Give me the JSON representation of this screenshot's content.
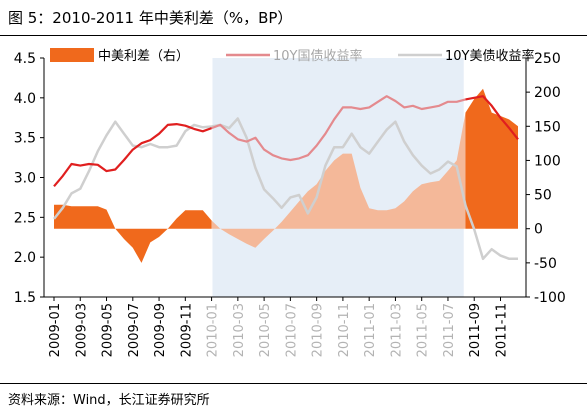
{
  "title": "图 5：2010-2011 年中美利差（%，BP）",
  "source": "资料来源：Wind，长江证券研究所",
  "colors": {
    "spread_pre": "#f0691c",
    "spread_shaded": "#f4b899",
    "cn": "#e01f1f",
    "cn_shaded": "#e48a8e",
    "us": "#cfcfcf",
    "us_pre": "#c9c9c9",
    "band": "#e6eef7"
  },
  "chart_data": {
    "type": "line",
    "x_ticks": [
      "2009-01",
      "2009-03",
      "2009-05",
      "2009-07",
      "2009-09",
      "2009-11",
      "2010-01",
      "2010-03",
      "2010-05",
      "2010-07",
      "2010-09",
      "2010-11",
      "2011-01",
      "2011-03",
      "2011-05",
      "2011-07",
      "2011-09",
      "2011-11"
    ],
    "shaded_range": [
      "2010-01",
      "2011-06"
    ],
    "y_left": {
      "ticks": [
        "1.5",
        "2.0",
        "2.5",
        "3.0",
        "3.5",
        "4.0",
        "4.5"
      ],
      "range": [
        1.5,
        4.5
      ]
    },
    "y_right": {
      "ticks": [
        "-100",
        "-50",
        "0",
        "50",
        "100",
        "150",
        "200",
        "250"
      ],
      "range": [
        -100,
        250
      ]
    },
    "series": [
      {
        "name": "中美利差（右）",
        "type": "area",
        "axis": "right",
        "data": [
          [
            0,
            35
          ],
          [
            1,
            35
          ],
          [
            2,
            33
          ],
          [
            3,
            33
          ],
          [
            4,
            33
          ],
          [
            5,
            33
          ],
          [
            6,
            28
          ],
          [
            7,
            0
          ],
          [
            8,
            -15
          ],
          [
            9,
            -28
          ],
          [
            10,
            -50
          ],
          [
            11,
            -20
          ],
          [
            12,
            -12
          ],
          [
            13,
            0
          ],
          [
            14,
            15
          ],
          [
            15,
            27
          ],
          [
            16,
            27
          ],
          [
            17,
            27
          ],
          [
            18,
            12
          ],
          [
            19,
            0
          ],
          [
            20,
            -8
          ],
          [
            21,
            -15
          ],
          [
            22,
            -22
          ],
          [
            23,
            -28
          ],
          [
            24,
            -15
          ],
          [
            25,
            -3
          ],
          [
            26,
            10
          ],
          [
            27,
            25
          ],
          [
            28,
            40
          ],
          [
            29,
            55
          ],
          [
            30,
            65
          ],
          [
            31,
            85
          ],
          [
            32,
            100
          ],
          [
            33,
            110
          ],
          [
            34,
            110
          ],
          [
            35,
            60
          ],
          [
            36,
            30
          ],
          [
            37,
            27
          ],
          [
            38,
            27
          ],
          [
            39,
            30
          ],
          [
            40,
            40
          ],
          [
            41,
            55
          ],
          [
            42,
            65
          ],
          [
            43,
            68
          ],
          [
            44,
            70
          ],
          [
            45,
            85
          ],
          [
            46,
            100
          ],
          [
            47,
            170
          ],
          [
            48,
            190
          ],
          [
            49,
            205
          ],
          [
            50,
            170
          ],
          [
            51,
            165
          ],
          [
            52,
            160
          ],
          [
            53,
            150
          ]
        ]
      },
      {
        "name": "10Y国债收益率",
        "type": "line",
        "axis": "left",
        "data": [
          [
            0,
            2.89
          ],
          [
            1,
            3.02
          ],
          [
            2,
            3.17
          ],
          [
            3,
            3.15
          ],
          [
            4,
            3.17
          ],
          [
            5,
            3.16
          ],
          [
            6,
            3.08
          ],
          [
            7,
            3.1
          ],
          [
            8,
            3.22
          ],
          [
            9,
            3.35
          ],
          [
            10,
            3.43
          ],
          [
            11,
            3.47
          ],
          [
            12,
            3.55
          ],
          [
            13,
            3.66
          ],
          [
            14,
            3.67
          ],
          [
            15,
            3.65
          ],
          [
            16,
            3.61
          ],
          [
            17,
            3.58
          ],
          [
            18,
            3.62
          ],
          [
            19,
            3.66
          ],
          [
            20,
            3.56
          ],
          [
            21,
            3.48
          ],
          [
            22,
            3.45
          ],
          [
            23,
            3.5
          ],
          [
            24,
            3.35
          ],
          [
            25,
            3.28
          ],
          [
            26,
            3.24
          ],
          [
            27,
            3.22
          ],
          [
            28,
            3.24
          ],
          [
            29,
            3.28
          ],
          [
            30,
            3.4
          ],
          [
            31,
            3.55
          ],
          [
            32,
            3.73
          ],
          [
            33,
            3.88
          ],
          [
            34,
            3.88
          ],
          [
            35,
            3.86
          ],
          [
            36,
            3.88
          ],
          [
            37,
            3.95
          ],
          [
            38,
            4.02
          ],
          [
            39,
            3.96
          ],
          [
            40,
            3.88
          ],
          [
            41,
            3.9
          ],
          [
            42,
            3.86
          ],
          [
            43,
            3.88
          ],
          [
            44,
            3.9
          ],
          [
            45,
            3.95
          ],
          [
            46,
            3.95
          ],
          [
            47,
            3.98
          ],
          [
            48,
            4.0
          ],
          [
            49,
            4.02
          ],
          [
            50,
            3.9
          ],
          [
            51,
            3.75
          ],
          [
            52,
            3.62
          ],
          [
            53,
            3.48
          ]
        ]
      },
      {
        "name": "10Y美债收益率",
        "type": "line",
        "axis": "left",
        "data": [
          [
            0,
            2.48
          ],
          [
            1,
            2.62
          ],
          [
            2,
            2.8
          ],
          [
            3,
            2.86
          ],
          [
            4,
            3.08
          ],
          [
            5,
            3.33
          ],
          [
            6,
            3.53
          ],
          [
            7,
            3.7
          ],
          [
            8,
            3.55
          ],
          [
            9,
            3.4
          ],
          [
            10,
            3.38
          ],
          [
            11,
            3.42
          ],
          [
            12,
            3.38
          ],
          [
            13,
            3.38
          ],
          [
            14,
            3.4
          ],
          [
            15,
            3.58
          ],
          [
            16,
            3.66
          ],
          [
            17,
            3.63
          ],
          [
            18,
            3.64
          ],
          [
            19,
            3.66
          ],
          [
            20,
            3.62
          ],
          [
            21,
            3.74
          ],
          [
            22,
            3.5
          ],
          [
            23,
            3.12
          ],
          [
            24,
            2.85
          ],
          [
            25,
            2.74
          ],
          [
            26,
            2.62
          ],
          [
            27,
            2.75
          ],
          [
            28,
            2.78
          ],
          [
            29,
            2.55
          ],
          [
            30,
            2.75
          ],
          [
            31,
            3.15
          ],
          [
            32,
            3.38
          ],
          [
            33,
            3.38
          ],
          [
            34,
            3.55
          ],
          [
            35,
            3.38
          ],
          [
            36,
            3.3
          ],
          [
            37,
            3.45
          ],
          [
            38,
            3.6
          ],
          [
            39,
            3.7
          ],
          [
            40,
            3.45
          ],
          [
            41,
            3.28
          ],
          [
            42,
            3.15
          ],
          [
            43,
            3.05
          ],
          [
            44,
            3.1
          ],
          [
            45,
            3.2
          ],
          [
            46,
            3.14
          ],
          [
            47,
            2.65
          ],
          [
            48,
            2.35
          ],
          [
            49,
            1.98
          ],
          [
            50,
            2.1
          ],
          [
            51,
            2.02
          ],
          [
            52,
            1.98
          ],
          [
            53,
            1.98
          ]
        ]
      }
    ]
  }
}
